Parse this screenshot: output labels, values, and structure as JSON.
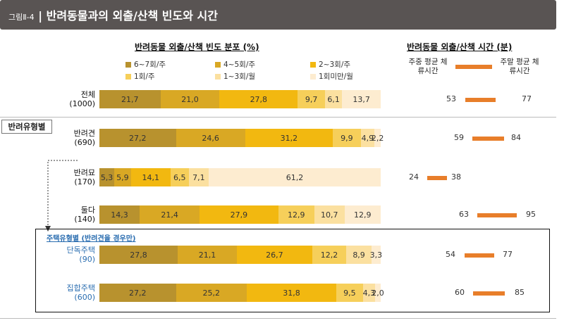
{
  "figure": {
    "number": "그림Ⅱ-4",
    "title": "반려동물과의 외출/산책 빈도와 시간"
  },
  "freq_header": "반려동물 외출/산책 빈도 분포 (%)",
  "time_header": "반려동물 외출/산책 시간 (분)",
  "time_legend": {
    "left": "주중 평균 체류시간",
    "right": "주말 평균 체류시간"
  },
  "section_label": "반려유형별",
  "housing_label": "주택유형별 (반려견을 경우만)",
  "chart_data": {
    "type": "bar",
    "stacked": true,
    "orientation": "horizontal",
    "title": "반려동물 외출/산책 빈도 분포 (%)",
    "categories": [
      {
        "name": "전체",
        "n": "(1000)"
      },
      {
        "name": "반려견",
        "n": "(690)"
      },
      {
        "name": "반려묘",
        "n": "(170)"
      },
      {
        "name": "둘다",
        "n": "(140)"
      },
      {
        "name": "단독주택",
        "n": "(90)"
      },
      {
        "name": "집합주택",
        "n": "(600)"
      }
    ],
    "series": [
      {
        "name": "6~7회/주",
        "color": "#b8922e",
        "values": [
          21.7,
          27.2,
          5.3,
          14.3,
          27.8,
          27.2
        ],
        "labels": [
          "21,7",
          "27,2",
          "5,3",
          "14,3",
          "27,8",
          "27,2"
        ]
      },
      {
        "name": "4~5회/주",
        "color": "#d9a824",
        "values": [
          21.0,
          24.6,
          5.9,
          21.4,
          21.1,
          25.2
        ],
        "labels": [
          "21,0",
          "24,6",
          "5,9",
          "21,4",
          "21,1",
          "25,2"
        ]
      },
      {
        "name": "2~3회/주",
        "color": "#f2b810",
        "values": [
          27.8,
          31.2,
          14.1,
          27.9,
          26.7,
          31.8
        ],
        "labels": [
          "27,8",
          "31,2",
          "14,1",
          "27,9",
          "26,7",
          "31,8"
        ]
      },
      {
        "name": "1회/주",
        "color": "#f6cf5a",
        "values": [
          9.7,
          9.9,
          6.5,
          12.9,
          12.2,
          9.5
        ],
        "labels": [
          "9,7",
          "9,9",
          "6,5",
          "12,9",
          "12,2",
          "9,5"
        ]
      },
      {
        "name": "1~3회/월",
        "color": "#fbe0a0",
        "values": [
          6.1,
          4.9,
          7.1,
          10.7,
          8.9,
          4.3
        ],
        "labels": [
          "6,1",
          "4,9",
          "7,1",
          "10,7",
          "8,9",
          "4,3"
        ]
      },
      {
        "name": "1회미만/월",
        "color": "#fdecd0",
        "values": [
          13.7,
          2.2,
          61.2,
          12.9,
          3.3,
          2.0
        ],
        "labels": [
          "13,7",
          "2,2",
          "61,2",
          "12,9",
          "3,3",
          "2,0"
        ]
      }
    ],
    "xlim": [
      0,
      100
    ],
    "time": {
      "title": "반려동물 외출/산책 시간 (분)",
      "weekday": [
        53,
        59,
        24,
        63,
        54,
        60
      ],
      "weekend": [
        77,
        84,
        38,
        95,
        77,
        85
      ],
      "bar_color": "#e87e2a"
    }
  }
}
